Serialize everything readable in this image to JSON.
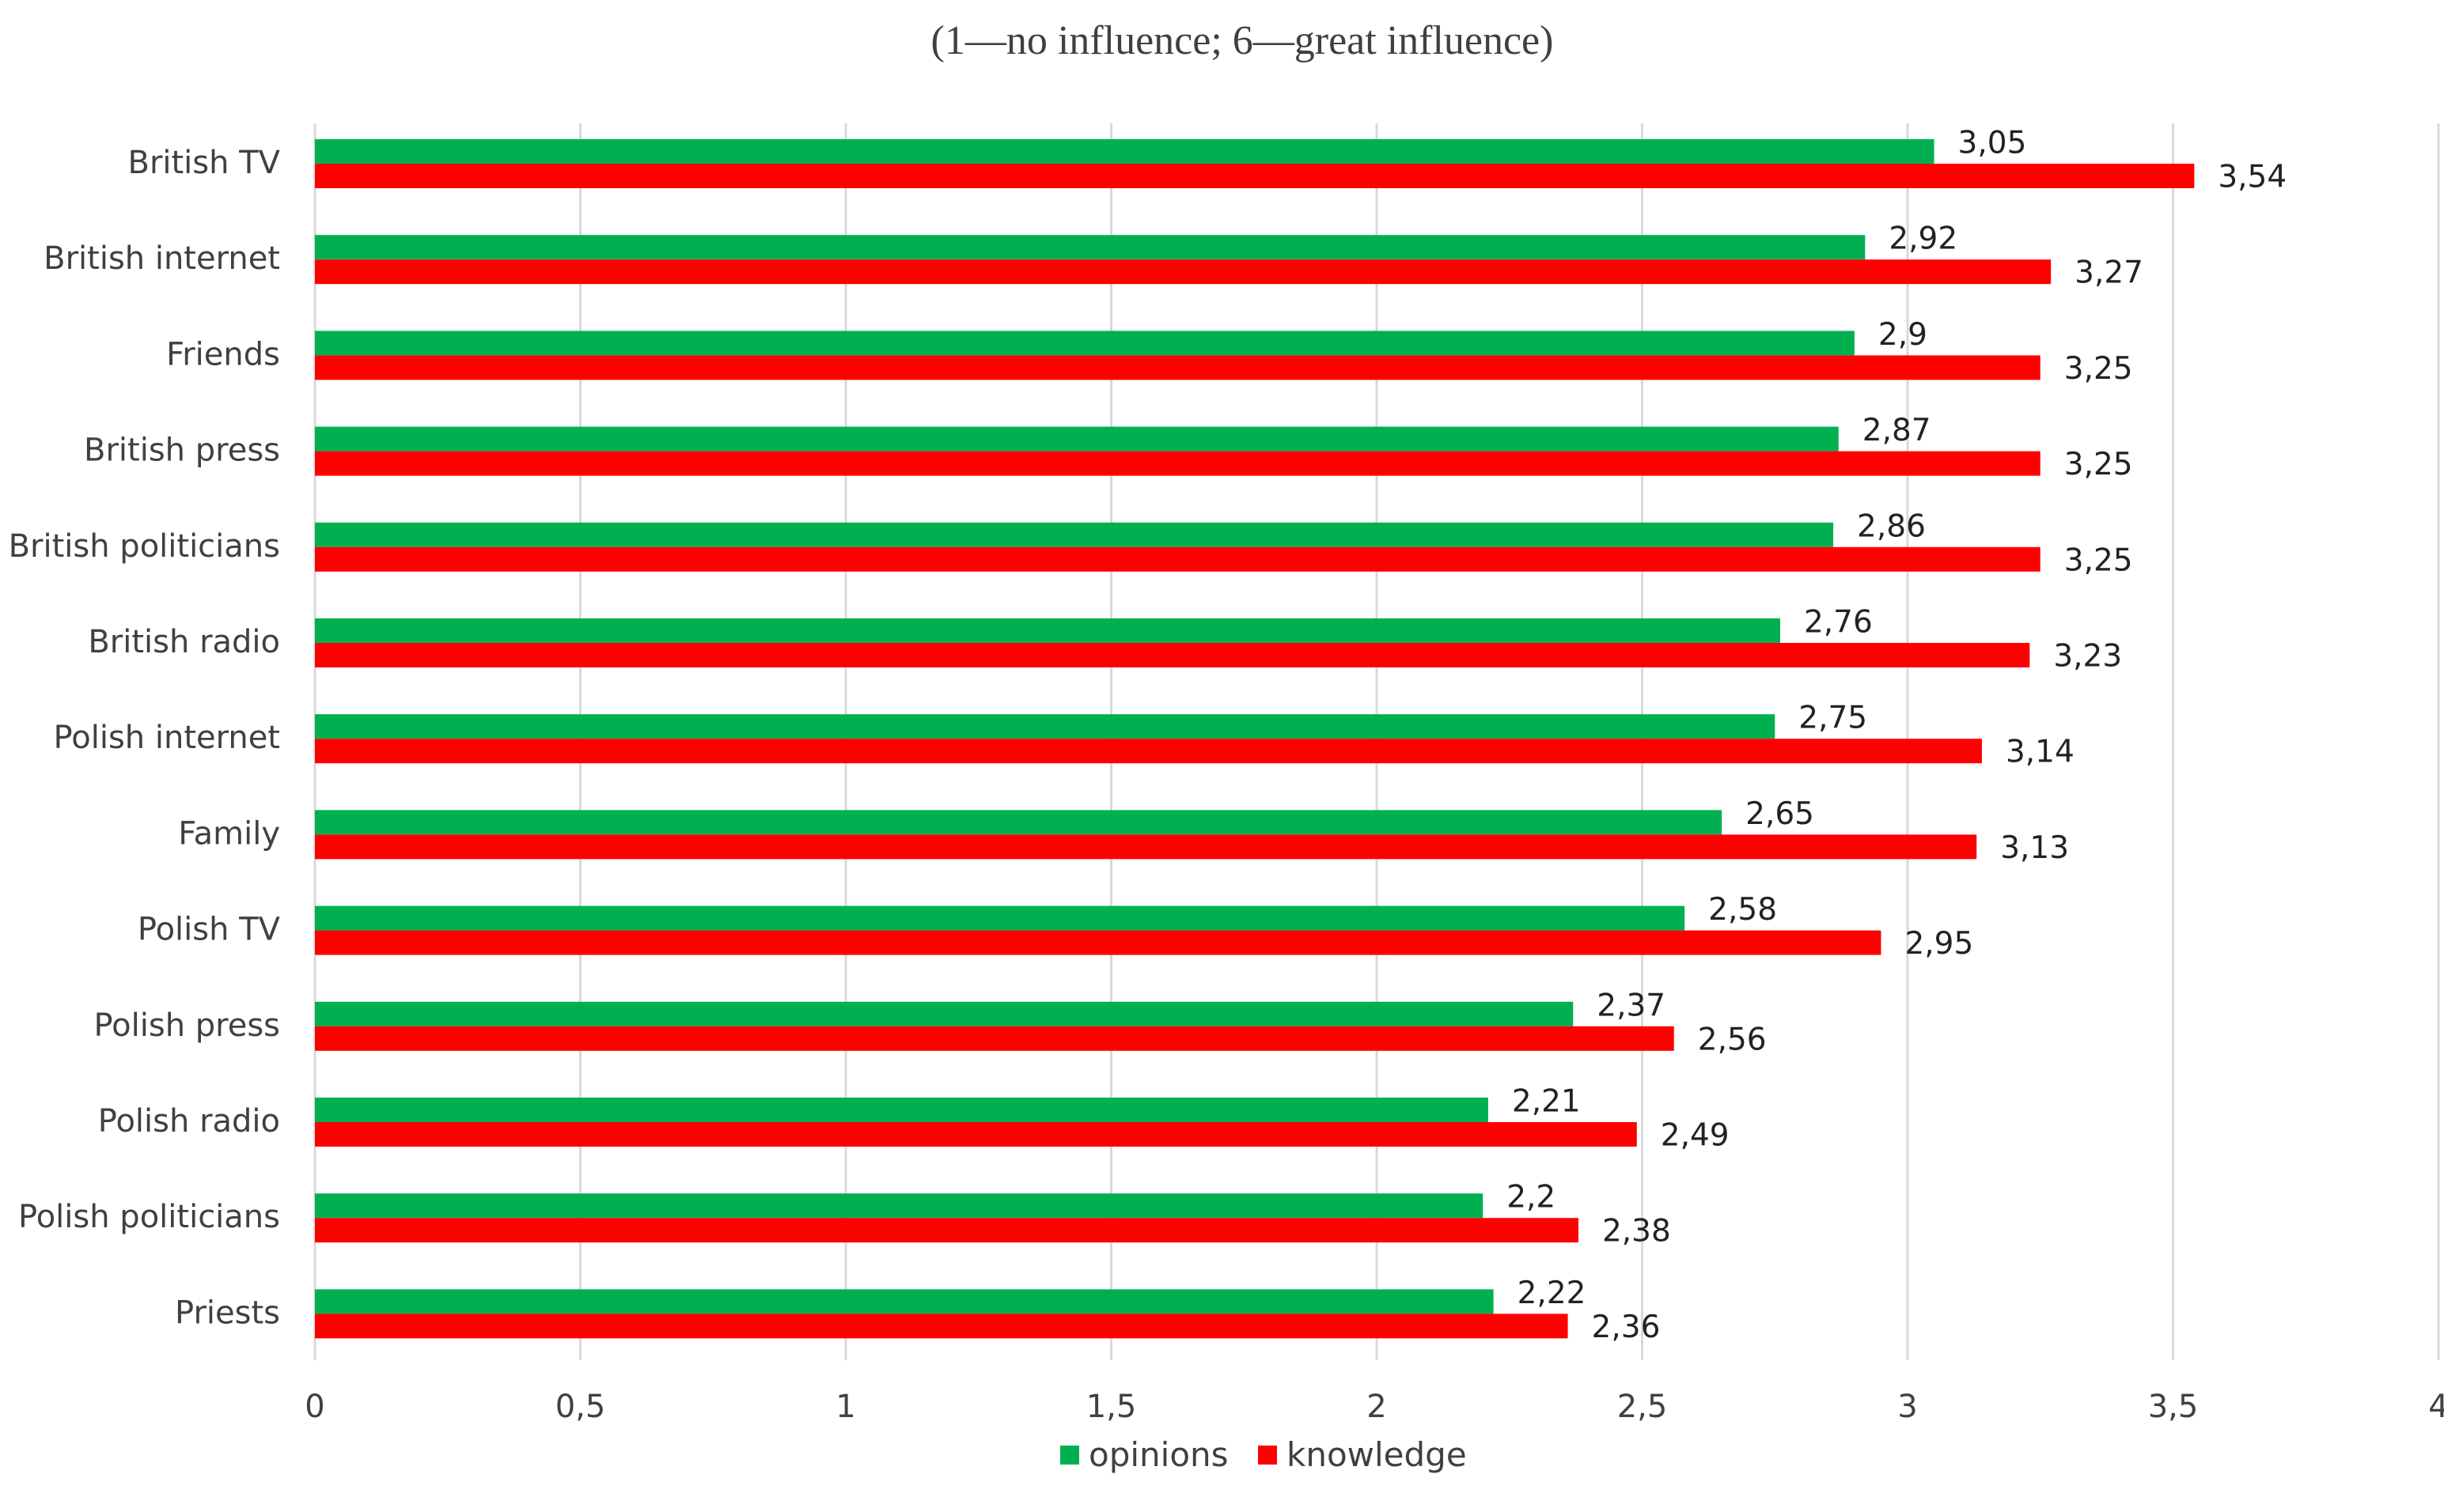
{
  "chart_data": {
    "type": "bar",
    "orientation": "horizontal",
    "subtitle": "(1—no influence; 6—great influence)",
    "categories": [
      "British TV",
      "British internet",
      "Friends",
      "British press",
      "British politicians",
      "British radio",
      "Polish internet",
      "Family",
      "Polish TV",
      "Polish press",
      "Polish radio",
      "Polish politicians",
      "Priests"
    ],
    "series": [
      {
        "name": "opinions",
        "color": "#00b050",
        "values": [
          3.05,
          2.92,
          2.9,
          2.87,
          2.86,
          2.76,
          2.75,
          2.65,
          2.58,
          2.37,
          2.21,
          2.2,
          2.22
        ],
        "labels": [
          "3,05",
          "2,92",
          "2,9",
          "2,87",
          "2,86",
          "2,76",
          "2,75",
          "2,65",
          "2,58",
          "2,37",
          "2,21",
          "2,2",
          "2,22"
        ]
      },
      {
        "name": "knowledge",
        "color": "#ff0000",
        "values": [
          3.54,
          3.27,
          3.25,
          3.25,
          3.25,
          3.23,
          3.14,
          3.13,
          2.95,
          2.56,
          2.49,
          2.38,
          2.36
        ],
        "labels": [
          "3,54",
          "3,27",
          "3,25",
          "3,25",
          "3,25",
          "3,23",
          "3,14",
          "3,13",
          "2,95",
          "2,56",
          "2,49",
          "2,38",
          "2,36"
        ]
      }
    ],
    "xlim": [
      0,
      4
    ],
    "xticks": [
      0,
      0.5,
      1,
      1.5,
      2,
      2.5,
      3,
      3.5,
      4
    ],
    "xtick_labels": [
      "0",
      "0,5",
      "1",
      "1,5",
      "2",
      "2,5",
      "3",
      "3,5",
      "4"
    ],
    "grid": "vertical",
    "legend": "bottom"
  }
}
